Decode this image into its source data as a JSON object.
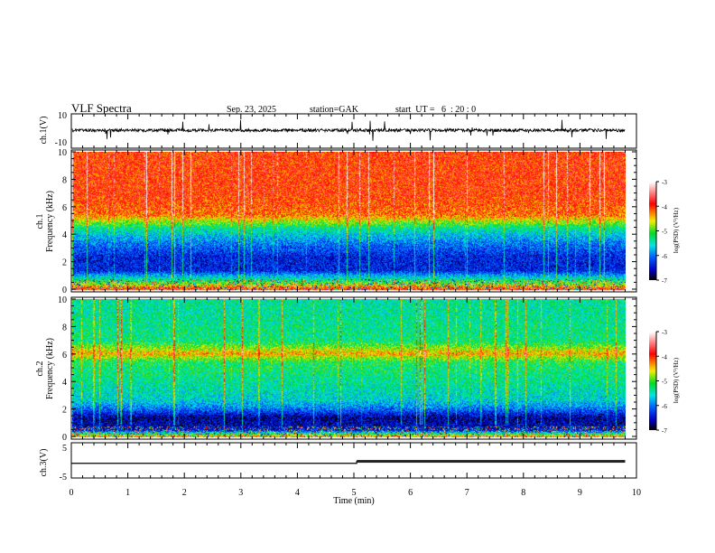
{
  "header": {
    "title": "VLF Spectra",
    "date": "Sep. 23, 2025",
    "station": "station=GAK",
    "start": "start  UT =   6  : 20 : 0"
  },
  "colors": {
    "trace": "#000000",
    "axis": "#000000"
  },
  "chart_data": [
    {
      "type": "line",
      "name": "ch1-waveform",
      "ylabel": "ch.1(V)",
      "ylim": [
        -10,
        10
      ],
      "yticks": [
        "10",
        "-10"
      ],
      "x_range_min": [
        0,
        9.8
      ],
      "mean_value_v": 0.5,
      "spike_range_v": [
        -8,
        8
      ]
    },
    {
      "type": "heatmap",
      "name": "ch1-spectrogram",
      "ylabel": "ch.1\nFrequency (kHz)",
      "ylabel_line1": "ch.1",
      "ylabel_line2": "Frequency (kHz)",
      "ylim": [
        0,
        10
      ],
      "yticks": [
        "0",
        "2",
        "4",
        "6",
        "8",
        "10"
      ],
      "colorbar": {
        "label": "log(PSD) (V²/Hz)",
        "range": [
          -7,
          -3
        ],
        "ticks": [
          "-3",
          "-4",
          "-5",
          "-6",
          "-7"
        ]
      },
      "profile_khz": [
        0.2,
        0.6,
        1.5,
        2.5,
        3.5,
        4.5,
        5.0,
        5.5,
        7,
        9
      ],
      "profile_logpsd": [
        -4.0,
        -5.0,
        -6.4,
        -6.4,
        -6.0,
        -5.4,
        -4.8,
        -4.2,
        -4.0,
        -4.0
      ]
    },
    {
      "type": "heatmap",
      "name": "ch2-spectrogram",
      "ylabel_line1": "ch.2",
      "ylabel_line2": "Frequency (kHz)",
      "ylim": [
        0,
        10
      ],
      "yticks": [
        "0",
        "2",
        "4",
        "6",
        "8",
        "10"
      ],
      "colorbar": {
        "label": "log(PSD) (V²/Hz)",
        "range": [
          -7,
          -3
        ],
        "ticks": [
          "-3",
          "-4",
          "-5",
          "-6",
          "-7"
        ]
      },
      "profile_khz": [
        0.2,
        0.6,
        1.5,
        2.2,
        2.8,
        4,
        5.5,
        6.1,
        7,
        9
      ],
      "profile_logpsd": [
        -4.5,
        -6.5,
        -6.7,
        -6.0,
        -5.6,
        -5.4,
        -5.2,
        -4.4,
        -5.3,
        -5.4
      ]
    },
    {
      "type": "line",
      "name": "ch3-waveform",
      "ylabel": "ch.3(V)",
      "ylim": [
        -5,
        5
      ],
      "yticks": [
        "5",
        "-5"
      ],
      "x": [
        0,
        5.05,
        5.05,
        9.8
      ],
      "y": [
        -0.4,
        -0.4,
        0.3,
        0.3
      ]
    }
  ],
  "xaxis": {
    "label": "Time  (min)",
    "range": [
      0,
      10
    ],
    "ticks": [
      "0",
      "1",
      "2",
      "3",
      "4",
      "5",
      "6",
      "7",
      "8",
      "9",
      "10"
    ]
  }
}
